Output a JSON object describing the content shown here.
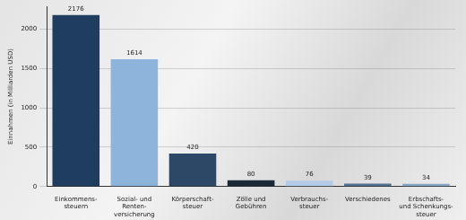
{
  "chart_data": {
    "type": "bar",
    "y_label": "Einnahmen (in Milliarden USD)",
    "categories": [
      "Einkommens-\nsteuern",
      "Sozial- und\nRenten-\nversicherung",
      "Körperschaft-\nsteuer",
      "Zölle und\nGebühren",
      "Verbrauchs-\nsteuer",
      "Verschiedenes",
      "Erbschafts-\nund Schenkungs-\nsteuer"
    ],
    "values": [
      2176,
      1614,
      420,
      80,
      76,
      39,
      34
    ],
    "colors": [
      "#1f3d5f",
      "#8fb4dc",
      "#2c4866",
      "#1a2838",
      "#b3cbe6",
      "#4f6f8f",
      "#86a6c6"
    ],
    "ylim": [
      0,
      2285
    ],
    "yticks": [
      0,
      500,
      1000,
      1500,
      2000
    ],
    "grid": true,
    "data_labels": true
  }
}
